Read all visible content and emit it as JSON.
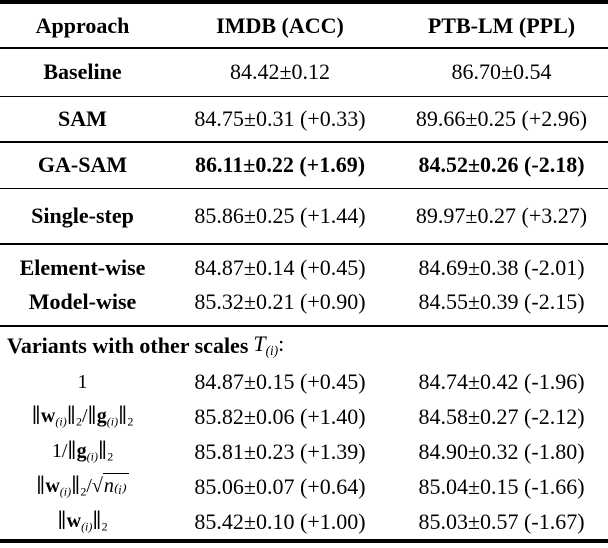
{
  "page": {
    "background": "#ffffff",
    "text_color": "#000000"
  },
  "table": {
    "header": {
      "approach": "Approach",
      "imdb": "IMDB (ACC)",
      "ptb": "PTB-LM (PPL)"
    },
    "rows": [
      {
        "approach": "Baseline",
        "imdb": "84.42±0.12",
        "ptb": "86.70±0.54",
        "emphasis": "normal"
      },
      {
        "approach": "SAM",
        "imdb": "84.75±0.31 (+0.33)",
        "ptb": "89.66±0.25 (+2.96)",
        "emphasis": "normal"
      },
      {
        "approach": "GA-SAM",
        "imdb": "86.11±0.22 (+1.69)",
        "ptb": "84.52±0.26 (-2.18)",
        "emphasis": "bold"
      },
      {
        "approach": "Single-step",
        "imdb": "85.86±0.25 (+1.44)",
        "ptb": "89.97±0.27 (+3.27)",
        "emphasis": "normal"
      },
      {
        "approach": "Element-wise",
        "imdb": "84.87±0.14 (+0.45)",
        "ptb": "84.69±0.38 (-2.01)",
        "emphasis": "normal"
      },
      {
        "approach": "Model-wise",
        "imdb": "85.32±0.21 (+0.90)",
        "ptb": "84.55±0.39 (-2.15)",
        "emphasis": "normal"
      }
    ],
    "variants": {
      "heading_text": "Variants with other scales",
      "heading_math": [
        {
          "t": "T",
          "c": "i"
        },
        {
          "t": "(i)",
          "c": "subi"
        },
        {
          "t": ":"
        }
      ],
      "rows": [
        {
          "label": [
            {
              "t": "1"
            }
          ],
          "imdb": "84.87±0.15 (+0.45)",
          "ptb": "84.74±0.42 (-1.96)"
        },
        {
          "label": [
            {
              "t": "∥"
            },
            {
              "t": "w",
              "c": "b"
            },
            {
              "t": "(i)",
              "c": "subi"
            },
            {
              "t": "∥"
            },
            {
              "t": "2",
              "c": "sub"
            },
            {
              "t": "/∥"
            },
            {
              "t": "g",
              "c": "b"
            },
            {
              "t": "(i)",
              "c": "subi"
            },
            {
              "t": "∥"
            },
            {
              "t": "2",
              "c": "sub"
            }
          ],
          "imdb": "85.82±0.06 (+1.40)",
          "ptb": "84.58±0.27 (-2.12)"
        },
        {
          "label": [
            {
              "t": "1/∥"
            },
            {
              "t": "g",
              "c": "b"
            },
            {
              "t": "(i)",
              "c": "subi"
            },
            {
              "t": "∥"
            },
            {
              "t": "2",
              "c": "sub"
            }
          ],
          "imdb": "85.81±0.23 (+1.39)",
          "ptb": "84.90±0.32 (-1.80)"
        },
        {
          "label": [
            {
              "t": "∥"
            },
            {
              "t": "w",
              "c": "b"
            },
            {
              "t": "(i)",
              "c": "subi"
            },
            {
              "t": "∥"
            },
            {
              "t": "2",
              "c": "sub"
            },
            {
              "t": "/"
            },
            {
              "t": "√"
            },
            {
              "t": "n₍ᵢ₎",
              "c": "rad"
            }
          ],
          "imdb": "85.06±0.07 (+0.64)",
          "ptb": "85.04±0.15 (-1.66)"
        },
        {
          "label": [
            {
              "t": "∥"
            },
            {
              "t": "w",
              "c": "b"
            },
            {
              "t": "(i)",
              "c": "subi"
            },
            {
              "t": "∥"
            },
            {
              "t": "2",
              "c": "sub"
            }
          ],
          "imdb": "85.42±0.10 (+1.00)",
          "ptb": "85.03±0.57 (-1.67)"
        }
      ]
    }
  }
}
